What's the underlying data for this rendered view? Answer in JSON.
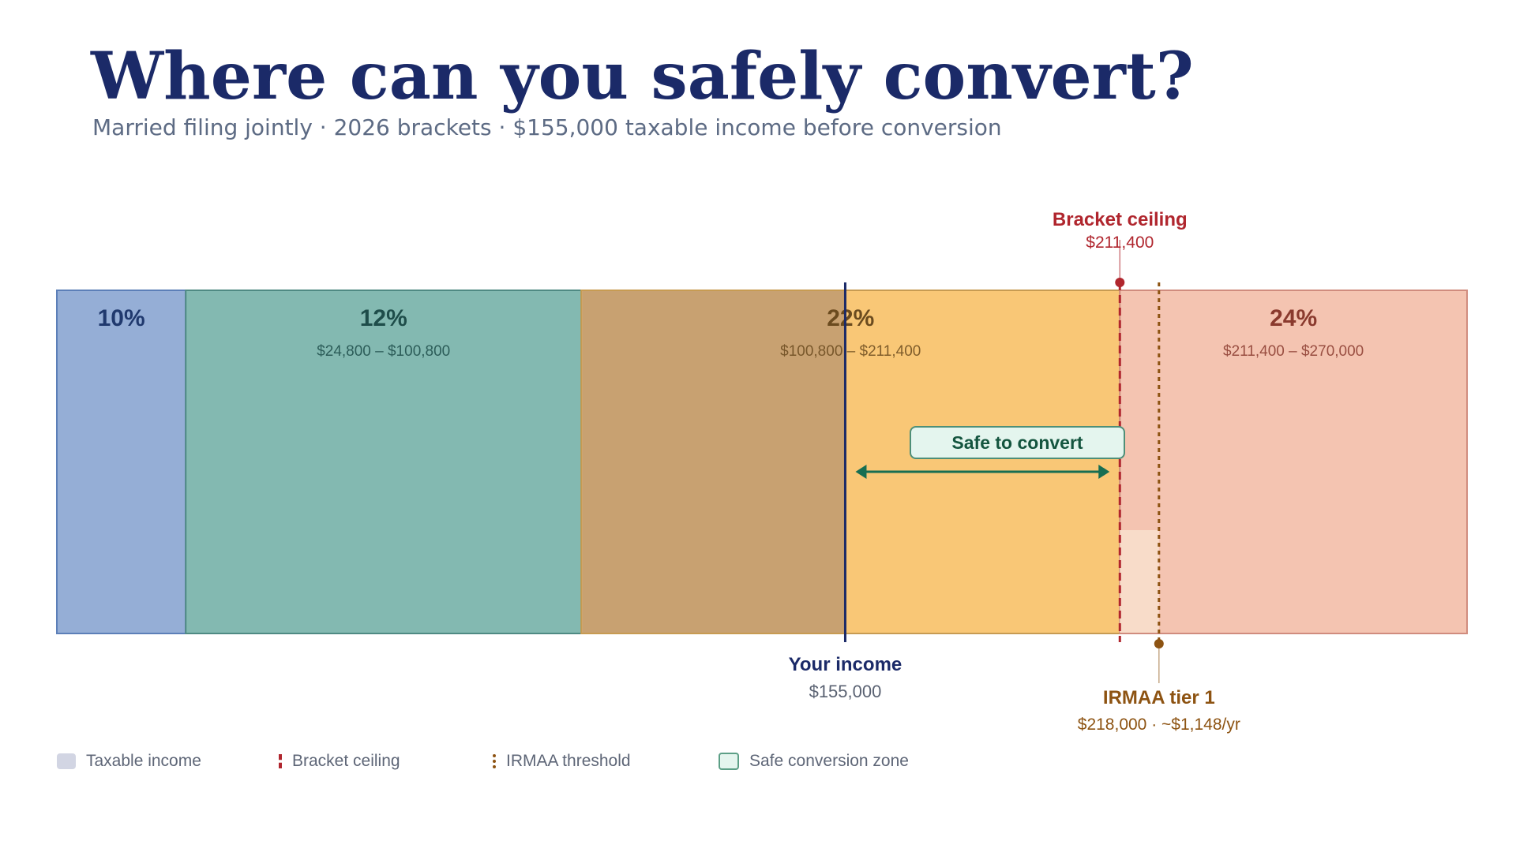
{
  "title": "Where can you safely convert?",
  "subtitle": "Married filing jointly · 2026 brackets · $155,000 taxable income before conversion",
  "chart_data": {
    "type": "bar",
    "orientation": "horizontal-stacked-ranges",
    "x_domain": [
      0,
      270000
    ],
    "brackets": [
      {
        "rate": "10%",
        "range_label": "",
        "start": 0,
        "end": 24800,
        "color": "#95aed6",
        "border": "#5c7fb8",
        "text_color": "#20396e"
      },
      {
        "rate": "12%",
        "range_label": "$24,800 – $100,800",
        "start": 24800,
        "end": 100800,
        "color": "#83b9b1",
        "border": "#4f8a83",
        "text_color": "#1e4d4a"
      },
      {
        "rate": "22%",
        "range_label": "$100,800 – $211,400",
        "start": 100800,
        "end": 211400,
        "color": "#f9c776",
        "border": "#c79b52",
        "text_color": "#6b4b1f"
      },
      {
        "rate": "24%",
        "range_label": "$211,400 – $270,000",
        "start": 211400,
        "end": 270000,
        "color": "#f4c4b1",
        "border": "#d08c7e",
        "text_color": "#8a3a2e"
      }
    ],
    "taxable_income": {
      "value": 155000,
      "label": "Your income",
      "value_label": "$155,000",
      "fill_color": "#c8a171",
      "line_color": "#1b2a68"
    },
    "bracket_ceiling": {
      "value": 211400,
      "label": "Bracket ceiling",
      "value_label": "$211,400",
      "color": "#b0262e"
    },
    "irmaa": {
      "value": 218000,
      "label": "IRMAA tier 1",
      "value_label": "$218,000 · ~$1,148/yr",
      "color": "#8d5312",
      "band_color": "#f8dfcc"
    },
    "safe_zone": {
      "start": 155000,
      "end": 211400,
      "label": "Safe to convert",
      "color": "#176e52",
      "box_fill": "#e4f5ee",
      "box_text": "#14553f"
    },
    "legend": [
      {
        "key": "income",
        "label": "Taxable income",
        "swatch_color": "#d2d5e3"
      },
      {
        "key": "ceiling",
        "label": "Bracket ceiling",
        "swatch_color": "#b0262e"
      },
      {
        "key": "irmaa",
        "label": "IRMAA threshold",
        "swatch_color": "#8d5312"
      },
      {
        "key": "safe",
        "label": "Safe conversion zone",
        "swatch_color": "#e4f5ee",
        "swatch_border": "#5c9f86"
      }
    ]
  }
}
